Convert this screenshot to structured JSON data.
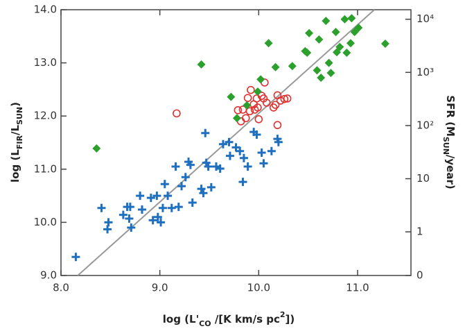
{
  "chart_data": {
    "type": "scatter",
    "x_label_parts": [
      "log (L'",
      "CO",
      " /[K km/s pc",
      "2",
      "])"
    ],
    "y_label_parts": [
      "log (L",
      "FIR",
      "/L",
      "SUN",
      ")"
    ],
    "y2_label_parts": [
      "SFR (M",
      "SUN",
      "/year)"
    ],
    "xlim": [
      8.0,
      11.54
    ],
    "ylim": [
      9.0,
      14.0
    ],
    "xticks": [
      {
        "value": 8,
        "label": "8.0"
      },
      {
        "value": 9,
        "label": "9.0"
      },
      {
        "value": 10,
        "label": "10.0"
      },
      {
        "value": 11,
        "label": "11.0"
      }
    ],
    "yticks": [
      {
        "value": 9,
        "label": "9.0"
      },
      {
        "value": 10,
        "label": "10.0"
      },
      {
        "value": 11,
        "label": "11.0"
      },
      {
        "value": 12,
        "label": "12.0"
      },
      {
        "value": 13,
        "label": "13.0"
      },
      {
        "value": 14,
        "label": "14.0"
      }
    ],
    "y2scale": "log",
    "y2lim": [
      0.151,
      15100
    ],
    "y2ticks": [
      {
        "value": 0.151,
        "label": "0"
      },
      1,
      10,
      {
        "value": 100,
        "label": "10²"
      },
      {
        "value": 1000,
        "label": "10³"
      },
      {
        "value": 10000,
        "label": "10⁴"
      }
    ],
    "fit_line": {
      "color": "#999999",
      "x": [
        8.17,
        11.17
      ],
      "values": [
        9.0,
        14.0
      ]
    },
    "series": [
      {
        "marker": "plus",
        "color": "#1f6fbf",
        "x": [
          8.15,
          8.41,
          8.48,
          8.47,
          8.63,
          8.67,
          8.7,
          8.69,
          8.71,
          8.8,
          8.82,
          8.91,
          8.93,
          8.97,
          8.98,
          9.01,
          9.03,
          9.05,
          9.08,
          9.12,
          9.16,
          9.19,
          9.22,
          9.26,
          9.29,
          9.31,
          9.33,
          9.42,
          9.44,
          9.47,
          9.49,
          9.52,
          9.57,
          9.61,
          9.64,
          9.7,
          9.71,
          9.77,
          9.81,
          9.85,
          9.84,
          9.89,
          9.95,
          9.98,
          10.03,
          10.13,
          10.19,
          10.2,
          10.05,
          9.46
        ],
        "values": [
          9.35,
          10.27,
          10.0,
          9.87,
          10.14,
          10.29,
          10.29,
          10.07,
          9.9,
          10.5,
          10.24,
          10.46,
          10.04,
          10.5,
          10.1,
          10.0,
          10.27,
          10.72,
          10.5,
          10.27,
          11.05,
          10.29,
          10.68,
          10.85,
          11.14,
          11.08,
          10.37,
          10.63,
          10.55,
          11.12,
          11.05,
          10.66,
          11.05,
          11.01,
          11.47,
          11.51,
          11.25,
          11.41,
          11.34,
          11.21,
          10.76,
          11.05,
          11.7,
          11.65,
          11.31,
          11.34,
          11.57,
          11.51,
          11.11,
          11.68
        ]
      },
      {
        "marker": "circle",
        "color": "#e03030",
        "x": [
          9.17,
          9.79,
          9.84,
          9.87,
          9.82,
          9.89,
          9.92,
          9.95,
          9.96,
          9.99,
          10.0,
          10.03,
          10.06,
          10.05,
          10.08,
          10.17,
          10.19,
          10.22,
          10.26,
          10.19,
          10.15,
          10.29,
          9.98,
          9.91
        ],
        "values": [
          12.05,
          12.11,
          12.12,
          11.96,
          11.9,
          12.34,
          12.49,
          12.22,
          12.12,
          12.16,
          11.94,
          12.38,
          12.63,
          12.33,
          12.25,
          12.21,
          12.39,
          12.29,
          12.32,
          11.83,
          12.16,
          12.33,
          12.33,
          12.09
        ]
      },
      {
        "marker": "diamond",
        "color": "#2ca02c",
        "x": [
          8.36,
          9.42,
          9.72,
          9.78,
          9.88,
          9.99,
          10.02,
          10.1,
          10.17,
          10.34,
          10.47,
          10.51,
          10.49,
          10.61,
          10.68,
          10.78,
          10.59,
          10.63,
          10.71,
          10.79,
          10.82,
          10.87,
          10.89,
          10.93,
          10.97,
          11.01,
          10.94,
          11.28,
          10.73
        ],
        "values": [
          11.39,
          12.97,
          12.36,
          11.96,
          12.2,
          12.46,
          12.69,
          13.37,
          12.92,
          12.94,
          13.22,
          13.56,
          13.19,
          13.44,
          13.79,
          13.58,
          12.86,
          12.72,
          13.0,
          13.2,
          13.3,
          13.82,
          13.19,
          13.37,
          13.58,
          13.66,
          13.84,
          13.36,
          12.81
        ]
      }
    ]
  }
}
